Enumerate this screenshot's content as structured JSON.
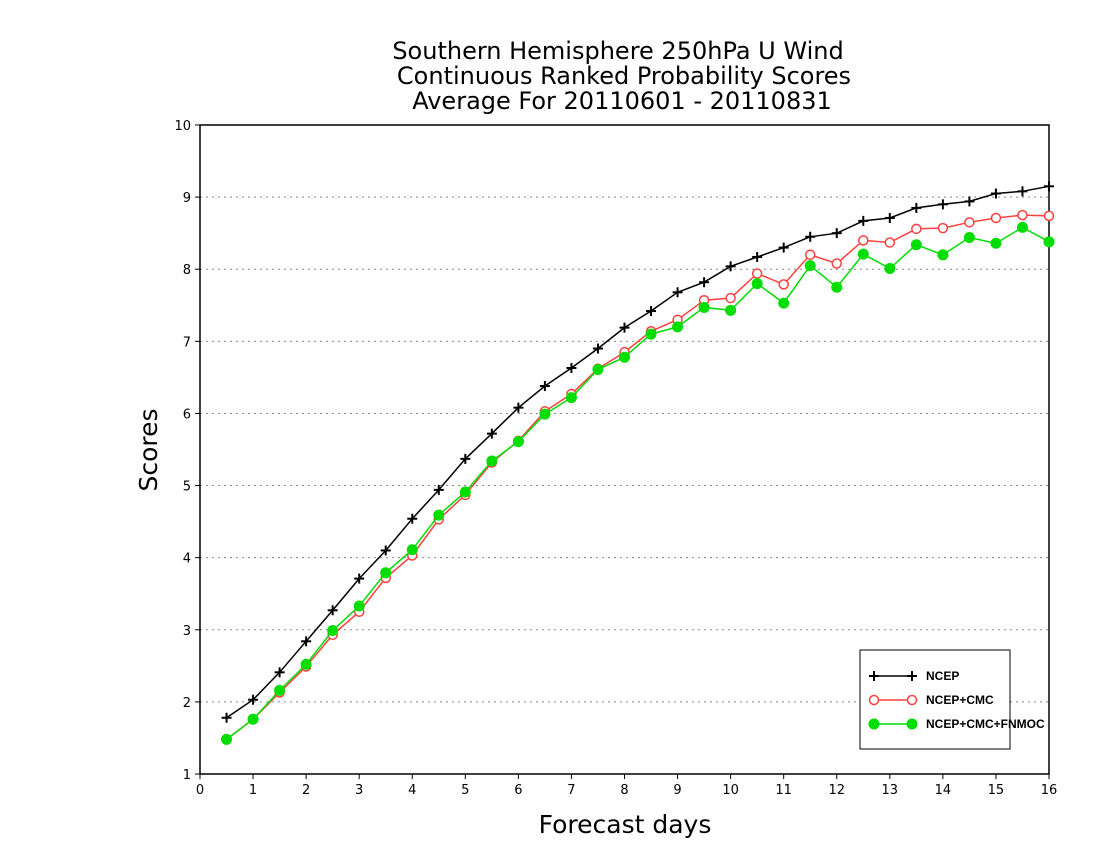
{
  "chart_data": {
    "type": "line",
    "title": [
      "Southern Hemisphere 250hPa U Wind",
      "Continuous Ranked Probability Scores",
      "Average For 20110601 - 20110831"
    ],
    "xlabel": "Forecast days",
    "ylabel": "Scores",
    "xlim": [
      0,
      16
    ],
    "ylim": [
      1,
      10
    ],
    "xticks": [
      "0",
      "1",
      "2",
      "3",
      "4",
      "5",
      "6",
      "7",
      "8",
      "9",
      "10",
      "11",
      "12",
      "13",
      "14",
      "15",
      "16"
    ],
    "yticks": [
      "1",
      "2",
      "3",
      "4",
      "5",
      "6",
      "7",
      "8",
      "9",
      "10"
    ],
    "grid": "horizontal-dotted",
    "legend_position": "bottom-right",
    "x": [
      0.5,
      1,
      1.5,
      2,
      2.5,
      3,
      3.5,
      4,
      4.5,
      5,
      5.5,
      6,
      6.5,
      7,
      7.5,
      8,
      8.5,
      9,
      9.5,
      10,
      10.5,
      11,
      11.5,
      12,
      12.5,
      13,
      13.5,
      14,
      14.5,
      15,
      15.5,
      16
    ],
    "series": [
      {
        "name": "NCEP",
        "color": "#000000",
        "marker": "plus",
        "values": [
          1.78,
          2.03,
          2.41,
          2.84,
          3.27,
          3.71,
          4.1,
          4.54,
          4.94,
          5.37,
          5.72,
          6.08,
          6.38,
          6.63,
          6.9,
          7.19,
          7.42,
          7.68,
          7.82,
          8.04,
          8.17,
          8.3,
          8.45,
          8.5,
          8.67,
          8.71,
          8.85,
          8.9,
          8.94,
          9.05,
          9.08,
          9.15
        ]
      },
      {
        "name": "NCEP+CMC",
        "color": "#ff4040",
        "marker": "open-circle",
        "values": [
          1.48,
          1.76,
          2.13,
          2.49,
          2.93,
          3.25,
          3.72,
          4.03,
          4.53,
          4.87,
          5.32,
          5.62,
          6.03,
          6.27,
          6.62,
          6.85,
          7.14,
          7.3,
          7.57,
          7.6,
          7.94,
          7.79,
          8.2,
          8.08,
          8.4,
          8.37,
          8.56,
          8.57,
          8.65,
          8.71,
          8.75,
          8.74
        ]
      },
      {
        "name": "NCEP+CMC+FNMOC",
        "color": "#00dd00",
        "marker": "filled-circle",
        "values": [
          1.48,
          1.76,
          2.16,
          2.52,
          2.99,
          3.33,
          3.79,
          4.11,
          4.59,
          4.91,
          5.34,
          5.61,
          5.99,
          6.22,
          6.61,
          6.78,
          7.1,
          7.2,
          7.47,
          7.43,
          7.8,
          7.53,
          8.05,
          7.75,
          8.21,
          8.01,
          8.34,
          8.2,
          8.44,
          8.36,
          8.58,
          8.38
        ]
      }
    ]
  }
}
